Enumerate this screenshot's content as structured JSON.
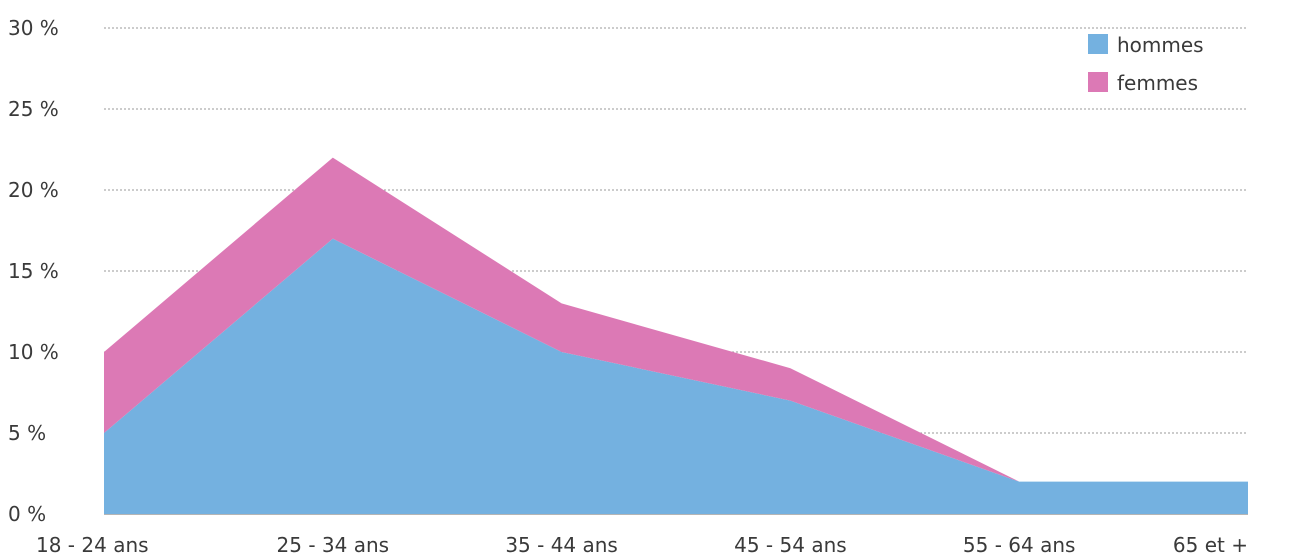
{
  "chart_data": {
    "type": "area",
    "stacked": true,
    "title": "",
    "xlabel": "",
    "ylabel": "",
    "categories": [
      "18 - 24 ans",
      "25 - 34 ans",
      "35 - 44 ans",
      "45 - 54 ans",
      "55 - 64 ans",
      "65 et +"
    ],
    "ylim": [
      0,
      30
    ],
    "yticks": [
      0,
      5,
      10,
      15,
      20,
      25,
      30
    ],
    "ytick_suffix": " %",
    "grid": true,
    "legend_position": "top-right",
    "series": [
      {
        "name": "hommes",
        "values": [
          5,
          17,
          10,
          7,
          2,
          2
        ],
        "color": "#74b1e0"
      },
      {
        "name": "femmes",
        "values": [
          5,
          5,
          3,
          2,
          0,
          0
        ],
        "color": "#dc79b5"
      }
    ]
  }
}
